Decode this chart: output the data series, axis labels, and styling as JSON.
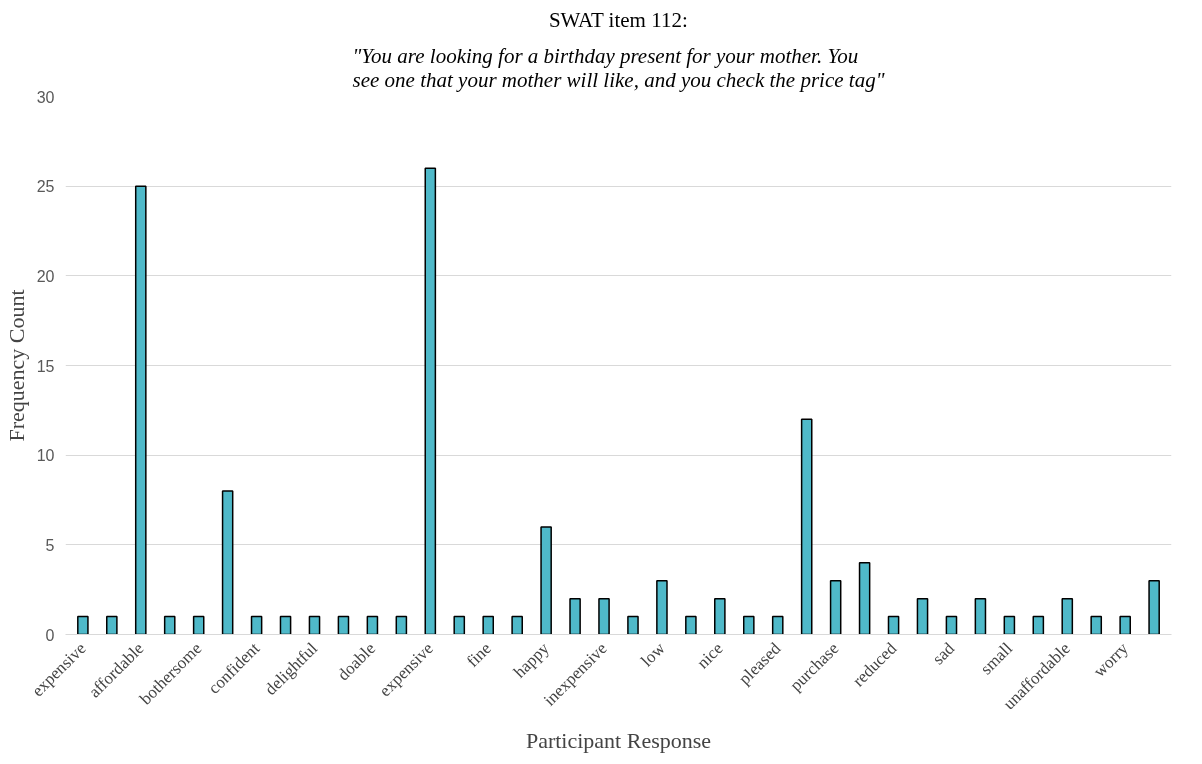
{
  "chart_data": {
    "type": "bar",
    "title": "SWAT item 112:",
    "subtitle": "\"You are looking for a birthday present for your mother. You see one that your mother will like, and you check the price tag\"",
    "xlabel": "Participant Response",
    "ylabel": "Frequency Count",
    "categories": [
      "expensive",
      null,
      "affordable",
      null,
      "bothersome",
      null,
      "confident",
      null,
      "delightful",
      null,
      "doable",
      null,
      "expensive",
      null,
      "fine",
      null,
      "happy",
      null,
      "inexpensive",
      null,
      "low",
      null,
      "nice",
      null,
      "pleased",
      null,
      "purchase",
      null,
      "reduced",
      null,
      "sad",
      null,
      "small",
      null,
      "unaffordable",
      null,
      "worry",
      null
    ],
    "values": [
      1,
      1,
      25,
      1,
      1,
      8,
      1,
      1,
      1,
      1,
      1,
      1,
      26,
      1,
      1,
      1,
      6,
      2,
      2,
      1,
      3,
      1,
      2,
      1,
      1,
      12,
      3,
      4,
      1,
      2,
      1,
      2,
      1,
      1,
      2,
      1,
      1,
      3
    ],
    "color": "#4fb9c9",
    "ylim": [
      0,
      30
    ],
    "yticks": [
      0,
      5,
      10,
      15,
      20,
      25,
      30
    ],
    "grid": "y"
  }
}
